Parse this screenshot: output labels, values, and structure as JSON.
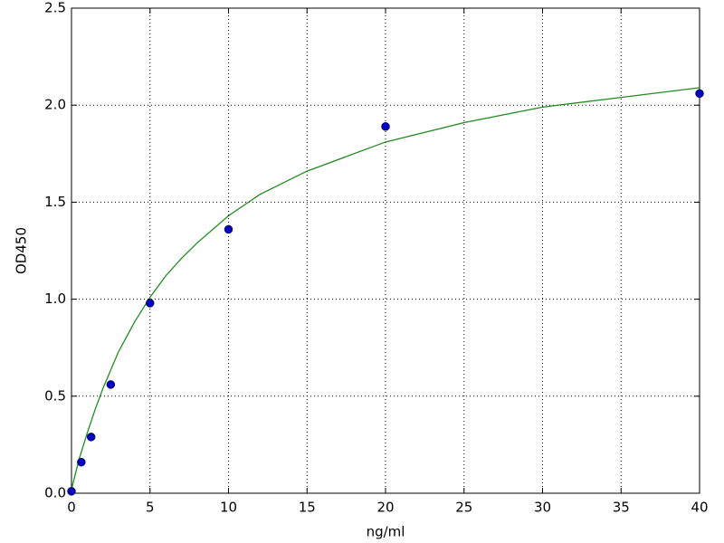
{
  "chart_data": {
    "type": "scatter",
    "xlabel": "ng/ml",
    "ylabel": "OD450",
    "xlim": [
      0,
      40
    ],
    "xticks": [
      0,
      5,
      10,
      15,
      20,
      25,
      30,
      35,
      40
    ],
    "ylim": [
      0,
      2.5
    ],
    "yticks": [
      {
        "value": 0,
        "label": "0.0"
      },
      {
        "value": 0.5,
        "label": "0.5"
      },
      {
        "value": 1,
        "label": "1.0"
      },
      {
        "value": 1.5,
        "label": "1.5"
      },
      {
        "value": 2,
        "label": "2.0"
      },
      {
        "value": 2.5,
        "label": "2.5"
      }
    ],
    "grid": true,
    "series": [
      {
        "type": "scatter",
        "color": "#0000bf",
        "x": [
          0,
          0.625,
          1.25,
          2.5,
          5,
          10,
          20,
          40
        ],
        "values": [
          0.01,
          0.16,
          0.29,
          0.56,
          0.98,
          1.36,
          1.89,
          2.06
        ]
      },
      {
        "type": "line",
        "color": "#228b22",
        "x": [
          0,
          0.5,
          1,
          1.5,
          2,
          3,
          4,
          5,
          6,
          7,
          8,
          10,
          12,
          15,
          20,
          25,
          30,
          35,
          40
        ],
        "values": [
          0.02,
          0.18,
          0.31,
          0.43,
          0.54,
          0.73,
          0.88,
          1.01,
          1.12,
          1.21,
          1.29,
          1.43,
          1.54,
          1.66,
          1.81,
          1.91,
          1.99,
          2.04,
          2.09
        ]
      }
    ]
  }
}
